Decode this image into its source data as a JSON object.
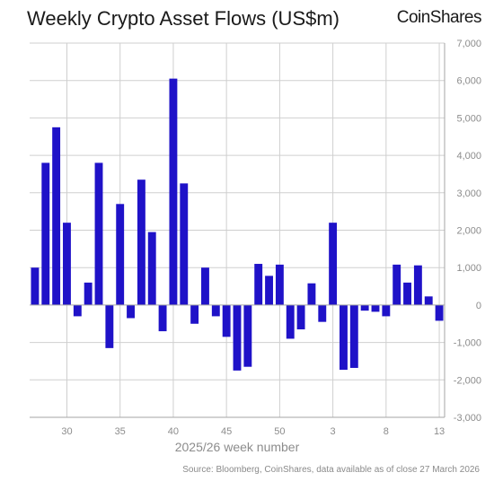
{
  "header": {
    "title": "Weekly Crypto Asset Flows (US$m)",
    "logo": "CoinShares"
  },
  "footer": {
    "source": "Source: Bloomberg, CoinShares, data available as of close 27 March 2026"
  },
  "colors": {
    "bar": "#1f12c8",
    "grid": "#cfcfcf",
    "axis": "#a6a6a6"
  },
  "chart_data": {
    "type": "bar",
    "title": "Weekly Crypto Asset Flows (US$m)",
    "xlabel": "2025/26 week number",
    "ylabel": "",
    "ylim": [
      -3000,
      7000
    ],
    "yticks": [
      7000,
      6000,
      5000,
      4000,
      3000,
      2000,
      1000,
      0,
      -1000,
      -2000,
      -3000
    ],
    "ytick_labels": [
      "7,000",
      "6,000",
      "5,000",
      "4,000",
      "3,000",
      "2,000",
      "1,000",
      "0",
      "-1,000",
      "-2,000",
      "-3,000"
    ],
    "xtick_labels": [
      "30",
      "35",
      "40",
      "45",
      "50",
      "3",
      "8",
      "13"
    ],
    "xtick_positions": [
      3,
      8,
      13,
      18,
      23,
      28,
      33,
      38
    ],
    "grid": true,
    "categories": [
      "27",
      "28",
      "29",
      "30",
      "31",
      "32",
      "33",
      "34",
      "35",
      "36",
      "37",
      "38",
      "39",
      "40",
      "41",
      "42",
      "43",
      "44",
      "45",
      "46",
      "47",
      "48",
      "49",
      "50",
      "51",
      "52",
      "1",
      "2",
      "3",
      "4",
      "5",
      "6",
      "7",
      "8",
      "9",
      "10",
      "11",
      "12",
      "13"
    ],
    "values": [
      1000,
      3800,
      4750,
      2200,
      -300,
      600,
      3800,
      -1150,
      2700,
      -350,
      3350,
      1950,
      -700,
      6050,
      3250,
      -500,
      1000,
      -300,
      -850,
      -1750,
      -1650,
      1100,
      780,
      1080,
      -900,
      -650,
      580,
      -450,
      2200,
      -1730,
      -1680,
      -150,
      -180,
      -300,
      1080,
      600,
      1060,
      230,
      -420
    ]
  }
}
